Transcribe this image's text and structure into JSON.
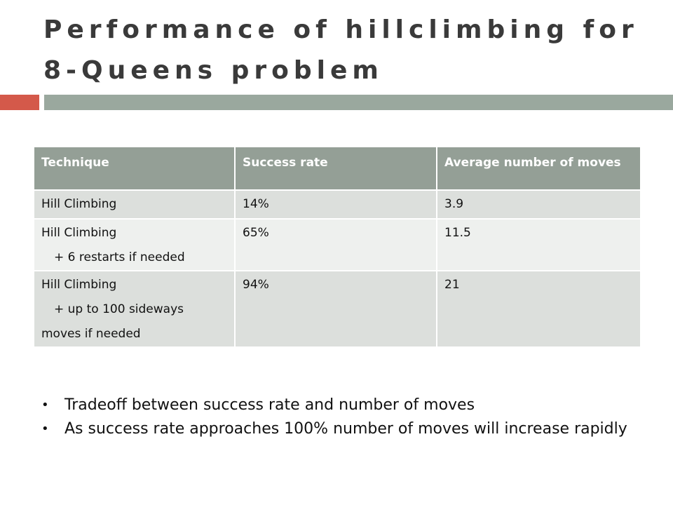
{
  "slide": {
    "title": "Performance of hillclimbing for 8-Queens problem"
  },
  "table": {
    "headers": [
      "Technique",
      "Success rate",
      "Average number of moves"
    ],
    "rows": [
      {
        "technique": "Hill Climbing",
        "technique_detail": "",
        "technique_detail_2": "",
        "success_rate": "14%",
        "avg_moves": "3.9"
      },
      {
        "technique": "Hill Climbing",
        "technique_detail": "+ 6 restarts if needed",
        "technique_detail_2": "",
        "success_rate": "65%",
        "avg_moves": "11.5"
      },
      {
        "technique": "Hill Climbing",
        "technique_detail": "+ up to 100 sideways",
        "technique_detail_2": "moves if needed",
        "success_rate": "94%",
        "avg_moves": "21"
      }
    ]
  },
  "bullets": [
    "Tradeoff between success rate and number of moves",
    "As success rate approaches 100% number of moves will increase rapidly"
  ],
  "colors": {
    "accent_red": "#d4594a",
    "accent_gray": "#9aa89e",
    "header_bg": "#949f96",
    "row_dark": "#dcdfdc",
    "row_light": "#eef0ee"
  }
}
